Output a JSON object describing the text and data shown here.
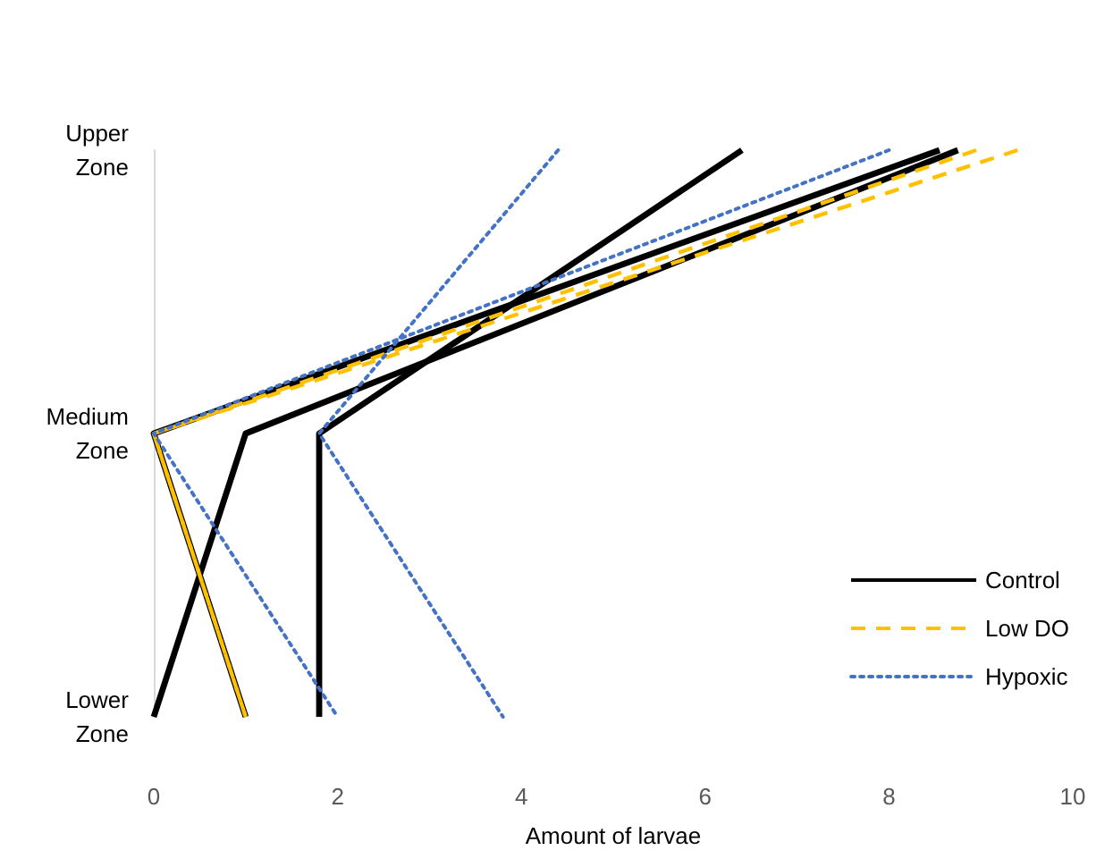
{
  "chart_data": {
    "type": "line",
    "orientation": "horizontal",
    "xlabel": "Amount of larvae",
    "categories": [
      "Upper Zone",
      "Medium Zone",
      "Lower Zone"
    ],
    "xlim": [
      0,
      10
    ],
    "xticks": [
      0,
      2,
      4,
      6,
      8,
      10
    ],
    "grid": false,
    "legend": "bottom right",
    "marker": "none",
    "series": [
      {
        "name": "Control",
        "color": "#000000",
        "line_style": "solid",
        "values": [
          8.75,
          1.0,
          0
        ]
      },
      {
        "color": "#000000",
        "line_style": "solid",
        "values": [
          6.4,
          1.8,
          1.8
        ]
      },
      {
        "color": "#000000",
        "line_style": "solid",
        "values": [
          8.55,
          0,
          1.0
        ]
      },
      {
        "name": "Low DO",
        "color": "#ffc000",
        "line_style": "dashed",
        "values": [
          8.95,
          0,
          1.0
        ]
      },
      {
        "color": "#ffc000",
        "line_style": "dashed",
        "values": [
          9.4,
          0,
          1.0
        ]
      },
      {
        "name": "Hypoxic",
        "color": "#4472c4",
        "line_style": "dotted",
        "values": [
          4.4,
          1.8,
          3.8
        ]
      },
      {
        "color": "#4472c4",
        "line_style": "dotted",
        "values": [
          8.0,
          0,
          2.0
        ]
      }
    ]
  }
}
